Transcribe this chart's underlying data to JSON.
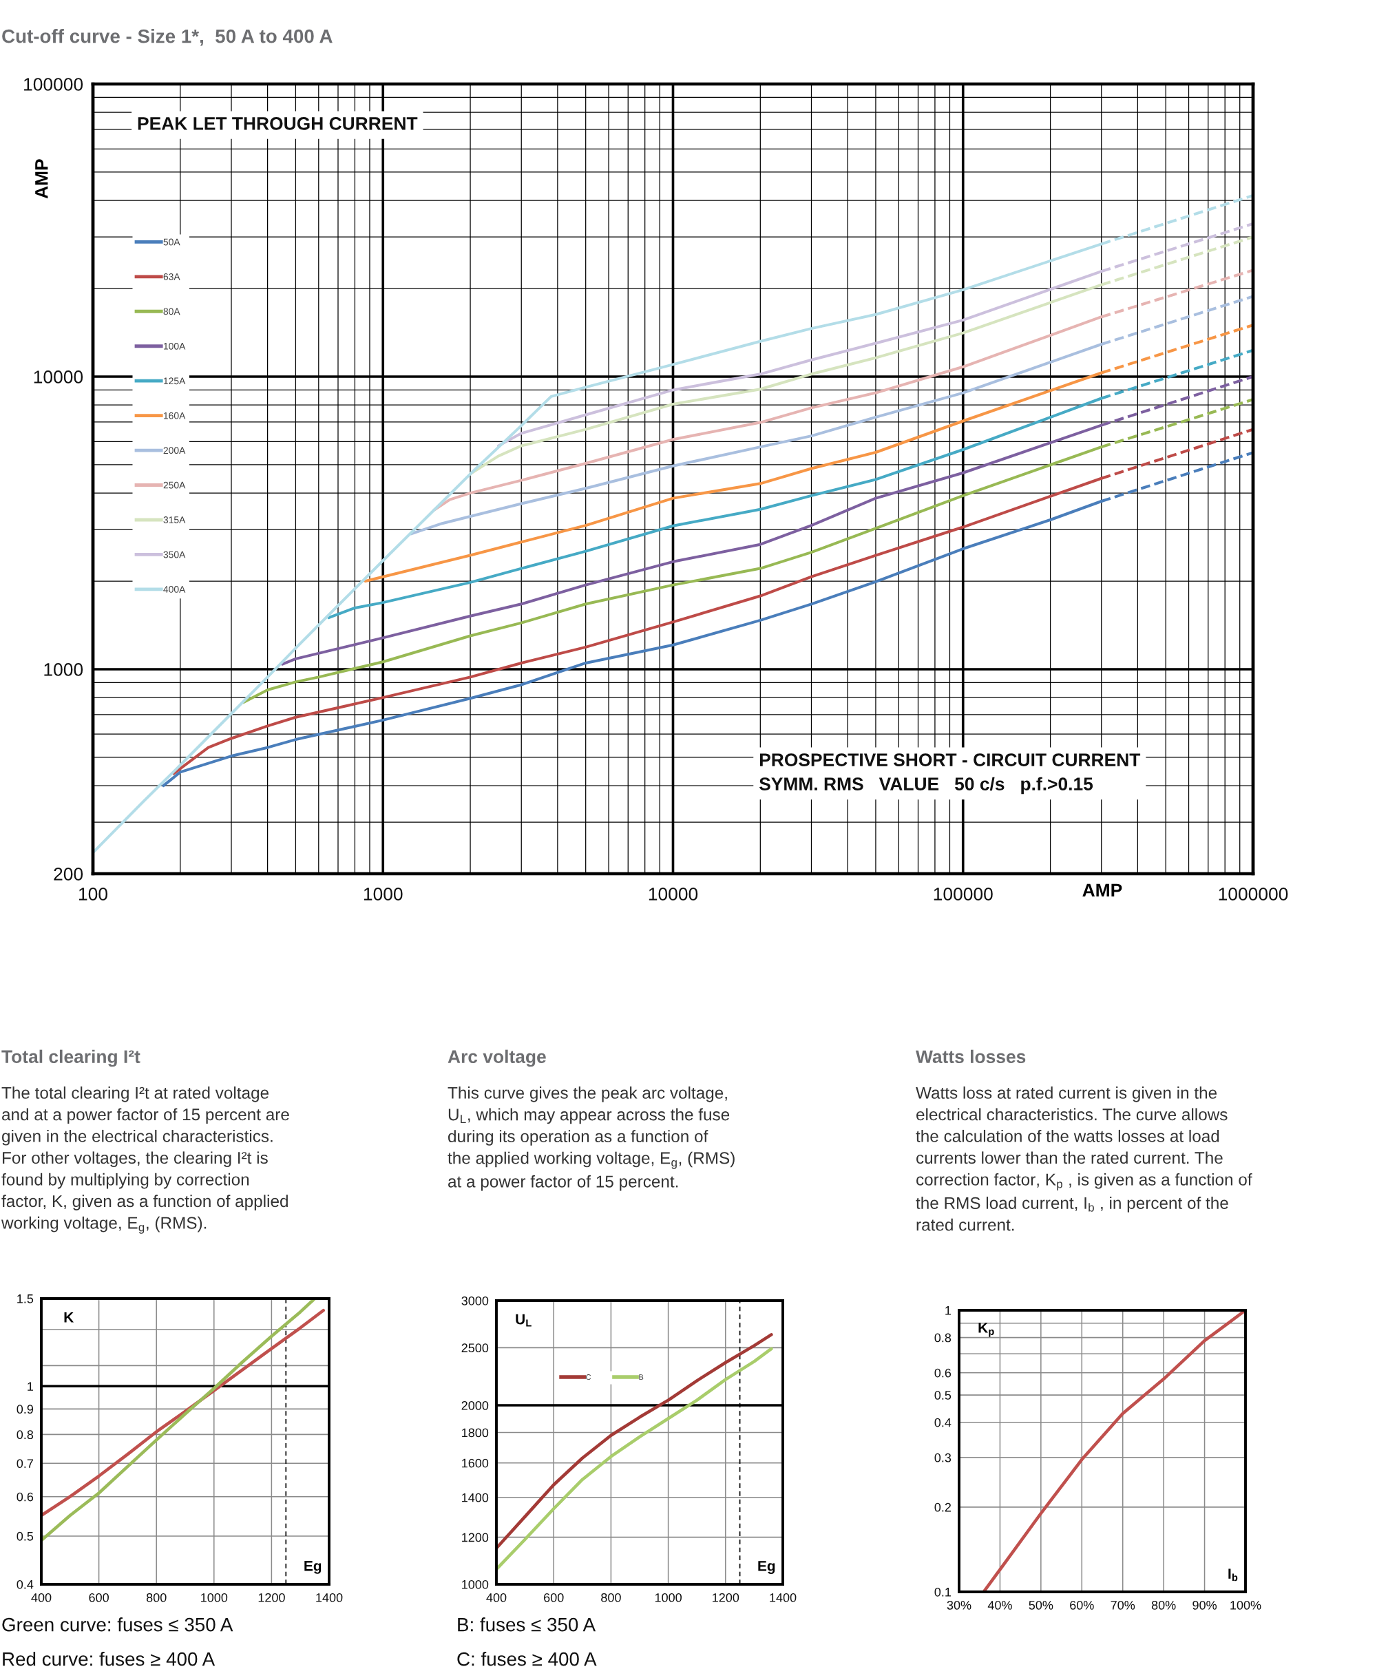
{
  "chart_data": [
    {
      "type": "line",
      "title": "Cut-off curve - Size 1*,  50 A to 400 A",
      "xlabel": "AMP",
      "ylabel": "AMP",
      "log": "xy",
      "xlim": [
        100,
        1000000
      ],
      "ylim": [
        200,
        100000
      ],
      "xticks": [
        100,
        1000,
        10000,
        100000,
        1000000
      ],
      "yticks": [
        200,
        1000,
        10000,
        100000
      ],
      "grid": true,
      "legend": "left",
      "annotations": [
        "PEAK LET THROUGH CURRENT",
        "PROSPECTIVE SHORT - CIRCUIT CURRENT\nSYMM. RMS   VALUE   50 c/s   p.f.>0.15"
      ],
      "series": [
        {
          "name": "50A",
          "color": "#4a7ebb",
          "x": [
            175,
            200,
            300,
            400,
            500,
            1000,
            2000,
            3000,
            5000,
            10000,
            20000,
            30000,
            50000,
            100000,
            200000,
            300000
          ],
          "values": [
            400,
            445,
            505,
            540,
            575,
            670,
            795,
            885,
            1050,
            1210,
            1470,
            1670,
            1990,
            2580,
            3240,
            3750
          ]
        },
        {
          "name": "63A",
          "color": "#be4b48",
          "x": [
            190,
            250,
            300,
            400,
            500,
            1000,
            2000,
            3000,
            5000,
            10000,
            20000,
            30000,
            50000,
            100000,
            300000
          ],
          "values": [
            440,
            540,
            580,
            640,
            685,
            800,
            940,
            1050,
            1190,
            1450,
            1780,
            2070,
            2450,
            3060,
            4490
          ]
        },
        {
          "name": "80A",
          "color": "#98b954",
          "x": [
            330,
            400,
            500,
            600,
            1000,
            2000,
            3000,
            5000,
            10000,
            20000,
            30000,
            50000,
            100000,
            300000
          ],
          "values": [
            770,
            850,
            905,
            940,
            1060,
            1300,
            1440,
            1670,
            1940,
            2210,
            2510,
            3030,
            3920,
            5750
          ]
        },
        {
          "name": "100A",
          "color": "#7d60a0",
          "x": [
            450,
            500,
            1000,
            2000,
            3000,
            5000,
            10000,
            20000,
            30000,
            50000,
            100000,
            300000
          ],
          "values": [
            1040,
            1085,
            1280,
            1520,
            1670,
            1940,
            2330,
            2670,
            3100,
            3840,
            4690,
            6820
          ]
        },
        {
          "name": "125A",
          "color": "#46aac5",
          "x": [
            650,
            800,
            1000,
            2000,
            3000,
            5000,
            10000,
            20000,
            30000,
            50000,
            100000,
            300000
          ],
          "values": [
            1500,
            1620,
            1690,
            1980,
            2210,
            2530,
            3090,
            3520,
            3920,
            4450,
            5630,
            8430
          ]
        },
        {
          "name": "160A",
          "color": "#f79646",
          "x": [
            870,
            1000,
            2000,
            3000,
            5000,
            10000,
            20000,
            30000,
            50000,
            100000,
            300000
          ],
          "values": [
            2000,
            2070,
            2450,
            2720,
            3100,
            3840,
            4310,
            4850,
            5510,
            7050,
            10300
          ]
        },
        {
          "name": "200A",
          "color": "#a9bfdf",
          "x": [
            1250,
            1600,
            2000,
            3000,
            5000,
            10000,
            20000,
            30000,
            50000,
            100000,
            300000
          ],
          "values": [
            2900,
            3150,
            3330,
            3680,
            4150,
            4950,
            5750,
            6270,
            7270,
            8800,
            12900
          ]
        },
        {
          "name": "250A",
          "color": "#e6b4b2",
          "x": [
            1500,
            1700,
            2000,
            3000,
            5000,
            10000,
            20000,
            30000,
            50000,
            100000,
            300000
          ],
          "values": [
            3500,
            3800,
            4000,
            4420,
            5050,
            6100,
            6970,
            7820,
            8800,
            10800,
            16000
          ]
        },
        {
          "name": "315A",
          "color": "#d6e4bf",
          "x": [
            2000,
            2500,
            3000,
            5000,
            10000,
            20000,
            30000,
            50000,
            100000,
            300000
          ],
          "values": [
            4650,
            5350,
            5800,
            6600,
            8050,
            9060,
            10200,
            11600,
            14100,
            20600
          ]
        },
        {
          "name": "350A",
          "color": "#ccc0dd",
          "x": [
            2500,
            3000,
            5000,
            10000,
            20000,
            30000,
            50000,
            100000,
            300000
          ],
          "values": [
            5800,
            6400,
            7400,
            9000,
            10200,
            11400,
            13000,
            15600,
            22900
          ]
        },
        {
          "name": "400A",
          "color": "#b3dde8",
          "x": [
            100,
            150,
            200,
            300,
            400,
            500,
            700,
            1000,
            1500,
            2000,
            3000,
            3800,
            5000,
            10000,
            20000,
            30000,
            50000,
            100000,
            300000
          ],
          "values": [
            236,
            355,
            470,
            705,
            940,
            1180,
            1650,
            2350,
            3500,
            4650,
            6800,
            8550,
            9200,
            11000,
            13200,
            14600,
            16300,
            19800,
            28400
          ]
        },
        {
          "color": "#4a7ebb",
          "line_style": "dashed",
          "x": [
            300000,
            1000000
          ],
          "values": [
            3750,
            5500
          ]
        },
        {
          "color": "#be4b48",
          "line_style": "dashed",
          "x": [
            300000,
            1000000
          ],
          "values": [
            4490,
            6600
          ]
        },
        {
          "color": "#98b954",
          "line_style": "dashed",
          "x": [
            300000,
            1000000
          ],
          "values": [
            5750,
            8350
          ]
        },
        {
          "color": "#7d60a0",
          "line_style": "dashed",
          "x": [
            300000,
            1000000
          ],
          "values": [
            6820,
            10000
          ]
        },
        {
          "color": "#46aac5",
          "line_style": "dashed",
          "x": [
            300000,
            1000000
          ],
          "values": [
            8430,
            12300
          ]
        },
        {
          "color": "#f79646",
          "line_style": "dashed",
          "x": [
            300000,
            1000000
          ],
          "values": [
            10300,
            15000
          ]
        },
        {
          "color": "#a9bfdf",
          "line_style": "dashed",
          "x": [
            300000,
            1000000
          ],
          "values": [
            12900,
            18800
          ]
        },
        {
          "color": "#e6b4b2",
          "line_style": "dashed",
          "x": [
            300000,
            1000000
          ],
          "values": [
            16000,
            23100
          ]
        },
        {
          "color": "#d6e4bf",
          "line_style": "dashed",
          "x": [
            300000,
            1000000
          ],
          "values": [
            20600,
            30000
          ]
        },
        {
          "color": "#ccc0dd",
          "line_style": "dashed",
          "x": [
            300000,
            1000000
          ],
          "values": [
            22900,
            33300
          ]
        },
        {
          "color": "#b3dde8",
          "line_style": "dashed",
          "x": [
            300000,
            1000000
          ],
          "values": [
            28400,
            41600
          ]
        }
      ]
    },
    {
      "type": "line",
      "title": "Total clearing I²t",
      "subtitle": "The total clearing I²t at rated voltage\nand at a power factor of 15 percent are\ngiven in the electrical characteristics.\nFor other voltages, the clearing I²t is\nfound by multiplying by correction\nfactor, K, given as a function of applied\nworking voltage, E$_{g}$, (RMS).",
      "xlabel": "Eg",
      "ylabel": "K",
      "log": "y",
      "xlim": [
        400,
        1400
      ],
      "ylim": [
        0.4,
        1.5
      ],
      "xticks": [
        400,
        600,
        800,
        1000,
        1200,
        1400
      ],
      "yticks": [
        0.4,
        0.5,
        0.6,
        0.7,
        0.8,
        0.9,
        1,
        {
          "value": 1.1,
          "label": null
        },
        {
          "value": 1.3,
          "label": null
        },
        1.5
      ],
      "grid": true,
      "ref_lines": [
        {
          "axis": "y",
          "value": 1,
          "color": "#000000"
        },
        {
          "axis": "x",
          "value": 1250,
          "line_style": "dashed",
          "color": "#000000"
        }
      ],
      "annotations": [
        "Green curve: fuses ≤ 350 A",
        "Red curve: fuses ≥ 400 A"
      ],
      "series": [
        {
          "color": "#c0504d",
          "x": [
            400,
            500,
            600,
            700,
            800,
            900,
            1000,
            1100,
            1200,
            1300,
            1380
          ],
          "values": [
            0.55,
            0.6,
            0.66,
            0.73,
            0.81,
            0.89,
            0.98,
            1.08,
            1.19,
            1.31,
            1.42
          ]
        },
        {
          "color": "#9bbb59",
          "x": [
            400,
            500,
            600,
            700,
            800,
            900,
            1000,
            1100,
            1200,
            1300,
            1350
          ],
          "values": [
            0.49,
            0.55,
            0.61,
            0.69,
            0.78,
            0.88,
            0.99,
            1.12,
            1.26,
            1.41,
            1.5
          ]
        }
      ]
    },
    {
      "type": "line",
      "title": "Arc voltage",
      "subtitle": "This curve gives the peak arc voltage,\nU$_{L}$, which may appear across the fuse\nduring its operation as a function of\nthe applied working voltage, E$_{g}$, (RMS)\nat a power factor of 15 percent.",
      "xlabel": "Eg",
      "ylabel": "U$_{L}$",
      "log": "y",
      "xlim": [
        400,
        1400
      ],
      "ylim": [
        1000,
        3000
      ],
      "xticks": [
        400,
        600,
        800,
        1000,
        1200,
        1400
      ],
      "yticks": [
        1000,
        1200,
        1400,
        1600,
        1800,
        2000,
        2500,
        3000
      ],
      "grid": true,
      "legend": "top",
      "ref_lines": [
        {
          "axis": "y",
          "value": 2000,
          "color": "#000000"
        },
        {
          "axis": "x",
          "value": 1250,
          "line_style": "dashed",
          "color": "#000000"
        }
      ],
      "annotations": [
        "B: fuses ≤ 350 A",
        "C: fuses ≥ 400 A"
      ],
      "series": [
        {
          "name": "C",
          "color": "#a33a36",
          "x": [
            400,
            500,
            600,
            700,
            800,
            900,
            1000,
            1100,
            1200,
            1300,
            1360
          ],
          "values": [
            1150,
            1300,
            1470,
            1630,
            1780,
            1910,
            2040,
            2200,
            2360,
            2520,
            2630
          ]
        },
        {
          "name": "B",
          "color": "#a9cd6b",
          "x": [
            400,
            500,
            600,
            700,
            800,
            900,
            1000,
            1100,
            1200,
            1300,
            1360
          ],
          "values": [
            1060,
            1190,
            1340,
            1500,
            1640,
            1770,
            1900,
            2040,
            2210,
            2370,
            2490
          ]
        }
      ]
    },
    {
      "type": "line",
      "title": "Watts losses",
      "subtitle": "Watts loss at rated current is given in the\nelectrical characteristics. The curve allows\nthe calculation of the watts losses at load\ncurrents lower than the rated current. The\ncorrection factor, K$_{p}$ , is given as a function of\nthe RMS load current, I$_{b}$ , in percent of the\nrated current.",
      "xlabel": "I$_{b}$",
      "ylabel": "K$_{p}$",
      "log": "y",
      "xlim": [
        30,
        100
      ],
      "ylim": [
        0.1,
        1
      ],
      "xticks": [
        {
          "value": 30,
          "label": "30%"
        },
        {
          "value": 40,
          "label": "40%"
        },
        {
          "value": 50,
          "label": "50%"
        },
        {
          "value": 60,
          "label": "60%"
        },
        {
          "value": 70,
          "label": "70%"
        },
        {
          "value": 80,
          "label": "80%"
        },
        {
          "value": 90,
          "label": "90%"
        },
        {
          "value": 100,
          "label": "100%"
        }
      ],
      "yticks": [
        0.1,
        0.2,
        0.3,
        0.4,
        0.5,
        0.6,
        {
          "value": 0.7,
          "label": null
        },
        0.8,
        {
          "value": 0.9,
          "label": null
        },
        1
      ],
      "grid": true,
      "series": [
        {
          "color": "#c0504d",
          "x": [
            36,
            40,
            50,
            60,
            70,
            80,
            90,
            100
          ],
          "values": [
            0.1,
            0.12,
            0.19,
            0.295,
            0.43,
            0.57,
            0.78,
            1
          ]
        }
      ]
    }
  ]
}
